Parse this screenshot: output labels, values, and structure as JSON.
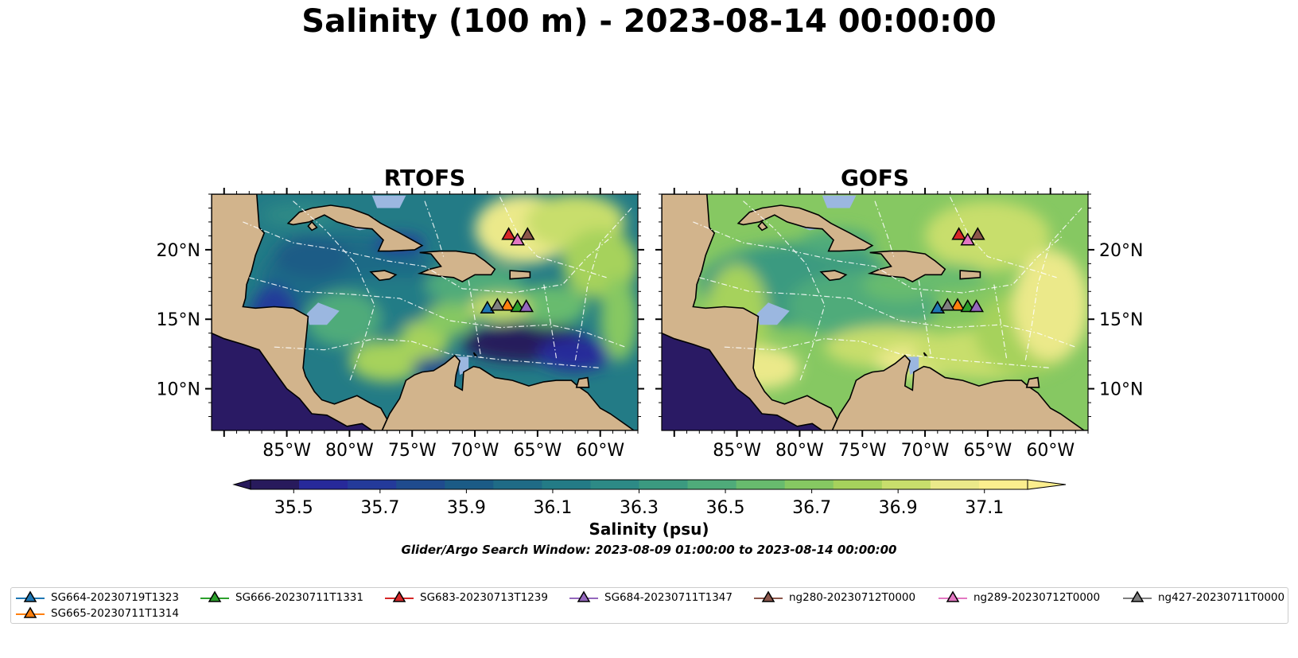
{
  "title": "Salinity (100 m) - 2023-08-14 00:00:00",
  "panels": [
    {
      "title": "RTOFS",
      "model": "rtofs"
    },
    {
      "title": "GOFS",
      "model": "gofs"
    }
  ],
  "map": {
    "lon_range": [
      -91,
      -57
    ],
    "lat_range": [
      7,
      24
    ],
    "lon_ticks": [
      "85°W",
      "80°W",
      "75°W",
      "70°W",
      "65°W",
      "60°W"
    ],
    "lat_ticks": [
      "20°N",
      "15°N",
      "10°N"
    ],
    "land_color": "#d2b48c",
    "shelf_color": "#9bb7e0",
    "pacific_color": "#2a1a64"
  },
  "colorbar": {
    "label": "Salinity (psu)",
    "ticks": [
      "35.5",
      "35.7",
      "35.9",
      "36.1",
      "36.3",
      "36.5",
      "36.7",
      "36.9",
      "37.1"
    ],
    "min": 35.4,
    "max": 37.2,
    "extend": "both",
    "colors": [
      "#281a5c",
      "#27299a",
      "#243a9a",
      "#1f4b8e",
      "#1b5b86",
      "#1f6b86",
      "#237b86",
      "#2d8a86",
      "#3b9a80",
      "#4fab7a",
      "#68bb6e",
      "#86c862",
      "#a6d25c",
      "#c8de6c",
      "#ebe98a",
      "#fbee8e"
    ]
  },
  "search_window": "Glider/Argo Search Window: 2023-08-09 01:00:00 to 2023-08-14 00:00:00",
  "gliders": [
    {
      "name": "SG664-20230719T1323",
      "color": "#1f77b4",
      "lon": -69.0,
      "lat": 15.8
    },
    {
      "name": "SG665-20230711T1314",
      "color": "#ff7f0e",
      "lon": -67.4,
      "lat": 16.0
    },
    {
      "name": "SG666-20230711T1331",
      "color": "#2ca02c",
      "lon": -66.6,
      "lat": 15.9
    },
    {
      "name": "SG683-20230713T1239",
      "color": "#d62728",
      "lon": -67.3,
      "lat": 21.1
    },
    {
      "name": "SG684-20230711T1347",
      "color": "#9467bd",
      "lon": -65.9,
      "lat": 15.9
    },
    {
      "name": "ng280-20230712T0000",
      "color": "#8c564b",
      "lon": -65.8,
      "lat": 21.1
    },
    {
      "name": "ng289-20230712T0000",
      "color": "#e377c2",
      "lon": -66.6,
      "lat": 20.7
    },
    {
      "name": "ng427-20230711T0000",
      "color": "#7f7f7f",
      "lon": -68.2,
      "lat": 16.0
    }
  ],
  "legend_order": [
    0,
    1,
    2,
    3,
    4,
    5,
    6,
    7
  ]
}
